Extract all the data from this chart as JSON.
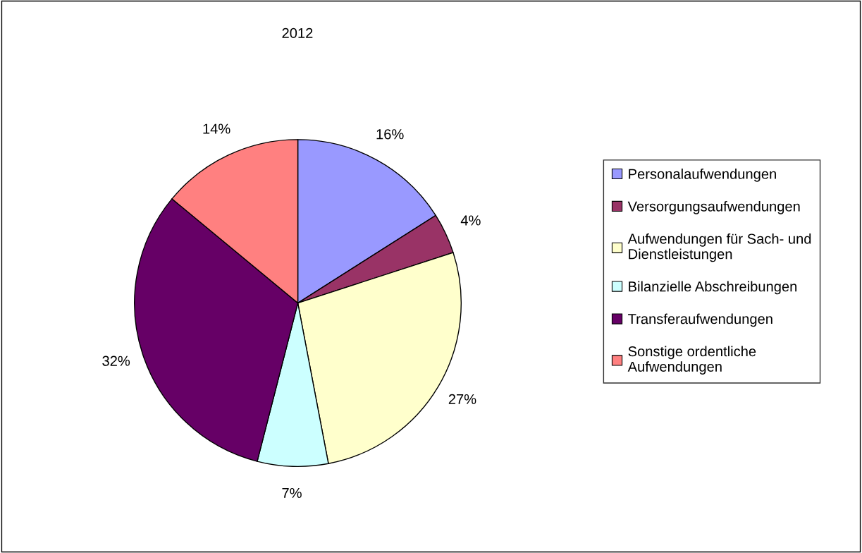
{
  "chart_data": {
    "type": "pie",
    "title": "2012",
    "categories": [
      "Personalaufwendungen",
      "Versorgungsaufwendungen",
      "Aufwendungen für Sach- und\nDienstleistungen",
      "Bilanzielle Abschreibungen",
      "Transferaufwendungen",
      "Sonstige ordentliche\nAufwendungen"
    ],
    "values": [
      16,
      4,
      27,
      7,
      32,
      14
    ],
    "colors": [
      "#9999ff",
      "#993366",
      "#ffffcc",
      "#ccffff",
      "#660066",
      "#ff8080"
    ],
    "value_labels": [
      "16%",
      "4%",
      "27%",
      "7%",
      "32%",
      "14%"
    ],
    "legend": "right"
  }
}
